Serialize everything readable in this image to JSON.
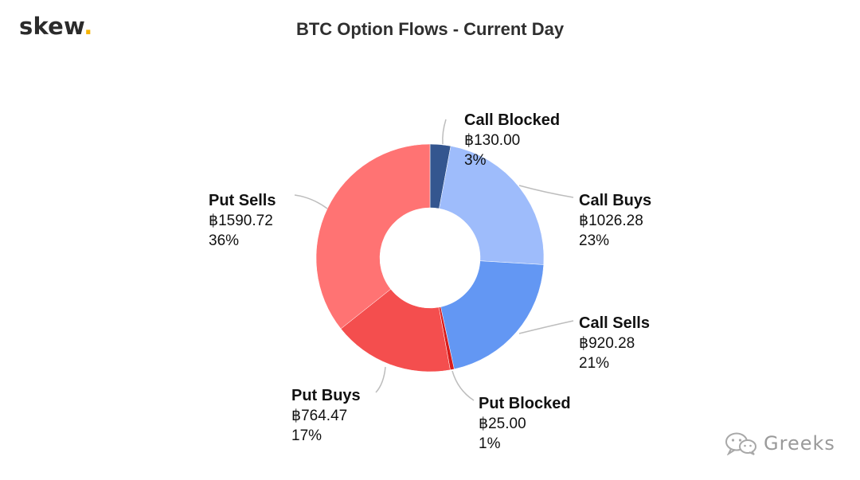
{
  "header": {
    "logo_text": "skew",
    "logo_dot": ".",
    "title": "BTC Option Flows - Current Day"
  },
  "watermark": {
    "icon": "wechat-icon",
    "text": "Greeks"
  },
  "colors": {
    "call_blocked": "#34568f",
    "call_buys": "#9ebcfb",
    "call_sells": "#6397f3",
    "put_blocked": "#d81c1c",
    "put_buys": "#f44e4e",
    "put_sells": "#ff7373",
    "leader_line": "#bdbdbd"
  },
  "chart_data": {
    "type": "pie",
    "variant": "donut",
    "title": "BTC Option Flows - Current Day",
    "currency_symbol": "฿",
    "slices": [
      {
        "label": "Call Blocked",
        "value": 130.0,
        "value_text": "฿130.00",
        "percent_text": "3%",
        "color": "#34568f"
      },
      {
        "label": "Call Buys",
        "value": 1026.28,
        "value_text": "฿1026.28",
        "percent_text": "23%",
        "color": "#9ebcfb"
      },
      {
        "label": "Call Sells",
        "value": 920.28,
        "value_text": "฿920.28",
        "percent_text": "21%",
        "color": "#6397f3"
      },
      {
        "label": "Put Blocked",
        "value": 25.0,
        "value_text": "฿25.00",
        "percent_text": "1%",
        "color": "#d81c1c"
      },
      {
        "label": "Put Buys",
        "value": 764.47,
        "value_text": "฿764.47",
        "percent_text": "17%",
        "color": "#f44e4e"
      },
      {
        "label": "Put Sells",
        "value": 1590.72,
        "value_text": "฿1590.72",
        "percent_text": "36%",
        "color": "#ff7373"
      }
    ]
  }
}
